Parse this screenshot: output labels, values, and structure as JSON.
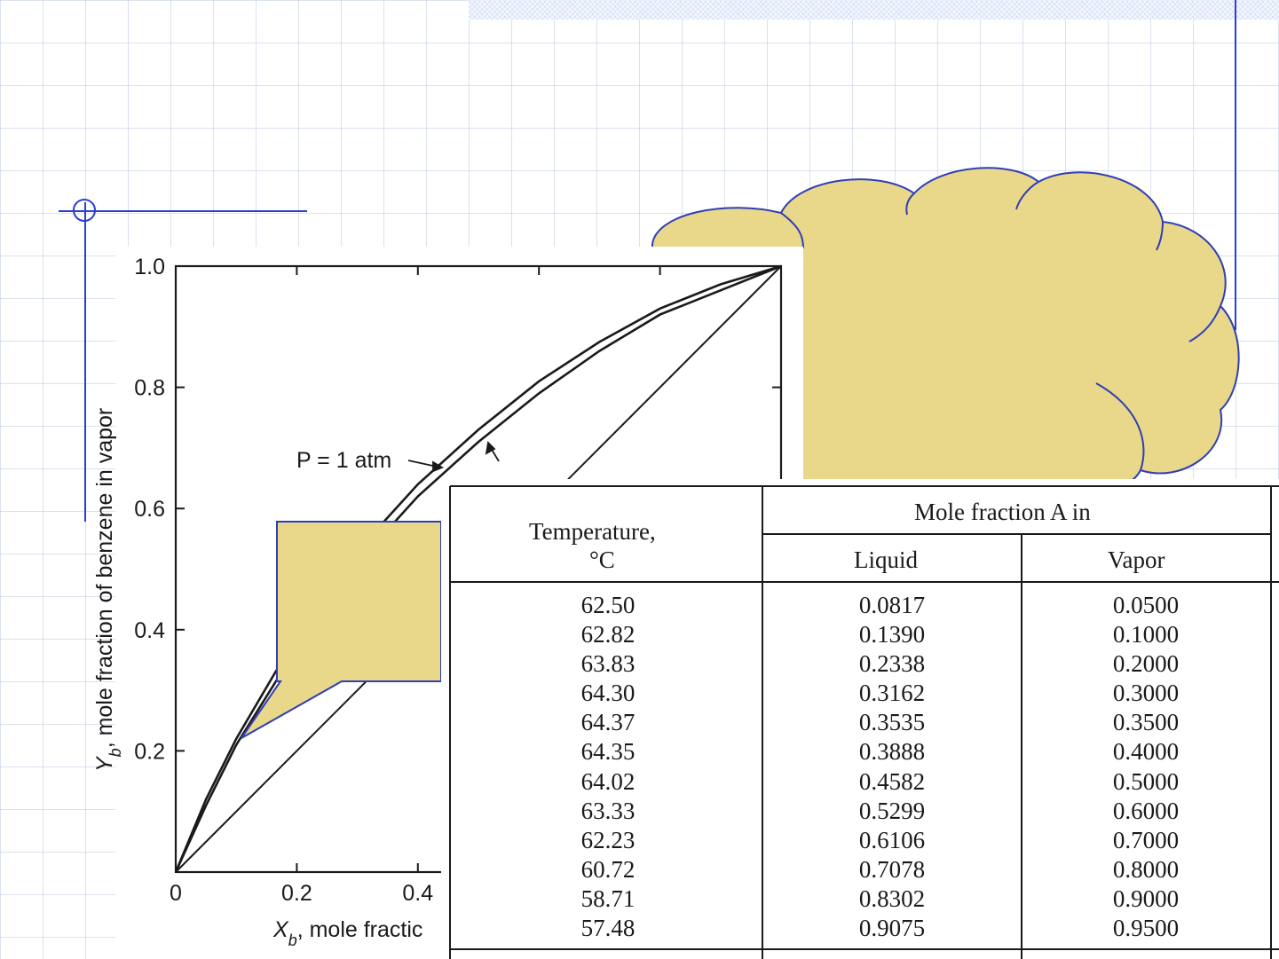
{
  "colors": {
    "callout_fill": "#e9d78a",
    "callout_stroke": "#2f3fb5",
    "grid": "#bec8e1",
    "accent": "#2b3fd0"
  },
  "chart_data": {
    "type": "line",
    "xlabel": "X_b, mole fractic",
    "ylabel": "Y_b, mole fraction of benzene in vapor",
    "xlim": [
      0,
      1.0
    ],
    "ylim": [
      0,
      1.0
    ],
    "x_ticks": [
      "0",
      "0.2",
      "0.4"
    ],
    "y_ticks": [
      "1.0",
      "0.8",
      "0.6",
      "0.4",
      "0.2"
    ],
    "annotation": "P = 1 atm",
    "series": [
      {
        "x": [
          0,
          0.05,
          0.1,
          0.2,
          0.3,
          0.4,
          0.5,
          0.6,
          0.7,
          0.8,
          0.9,
          1.0
        ],
        "y": [
          0,
          0.11,
          0.21,
          0.37,
          0.51,
          0.62,
          0.71,
          0.79,
          0.86,
          0.92,
          0.96,
          1.0
        ]
      },
      {
        "x": [
          0,
          0.05,
          0.1,
          0.2,
          0.3,
          0.4,
          0.5,
          0.6,
          0.7,
          0.8,
          0.9,
          1.0
        ],
        "y": [
          0,
          0.12,
          0.22,
          0.39,
          0.53,
          0.64,
          0.73,
          0.81,
          0.875,
          0.93,
          0.97,
          1.0
        ]
      },
      {
        "x": [
          0,
          1.0
        ],
        "y": [
          0,
          1.0
        ]
      }
    ],
    "grid": false
  },
  "table": {
    "header_temperature_line1": "Temperature,",
    "header_temperature_line2": "°C",
    "header_group": "Mole fraction A in",
    "header_liquid": "Liquid",
    "header_vapor": "Vapor",
    "temperature": [
      "62.50",
      "62.82",
      "63.83",
      "64.30",
      "64.37",
      "64.35",
      "64.02",
      "63.33",
      "62.23",
      "60.72",
      "58.71",
      "57.48"
    ],
    "liquid": [
      "0.0817",
      "0.1390",
      "0.2338",
      "0.3162",
      "0.3535",
      "0.3888",
      "0.4582",
      "0.5299",
      "0.6106",
      "0.7078",
      "0.8302",
      "0.9075"
    ],
    "vapor": [
      "0.0500",
      "0.1000",
      "0.2000",
      "0.3000",
      "0.3500",
      "0.4000",
      "0.5000",
      "0.6000",
      "0.7000",
      "0.8000",
      "0.9000",
      "0.9500"
    ]
  }
}
